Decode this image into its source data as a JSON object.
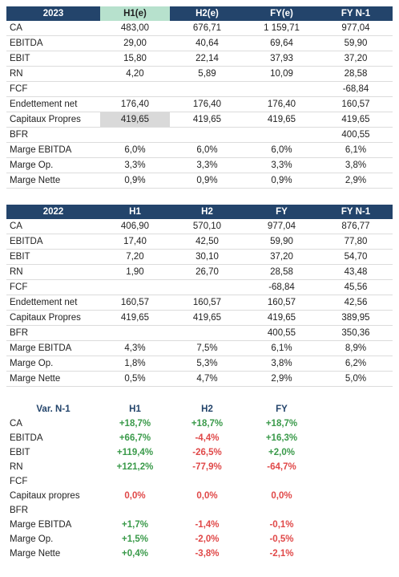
{
  "tables": [
    {
      "header": [
        "2023",
        "H1(e)",
        "H2(e)",
        "FY(e)",
        "FY N-1"
      ],
      "rows": [
        [
          "CA",
          "483,00",
          "676,71",
          "1 159,71",
          "977,04"
        ],
        [
          "EBITDA",
          "29,00",
          "40,64",
          "69,64",
          "59,90"
        ],
        [
          "EBIT",
          "15,80",
          "22,14",
          "37,93",
          "37,20"
        ],
        [
          "RN",
          "4,20",
          "5,89",
          "10,09",
          "28,58"
        ],
        [
          "FCF",
          null,
          null,
          null,
          "-68,84"
        ],
        [
          "Endettement net",
          "176,40",
          "176,40",
          "176,40",
          "160,57"
        ],
        [
          "Capitaux Propres",
          "419,65",
          "419,65",
          "419,65",
          "419,65"
        ],
        [
          "BFR",
          null,
          null,
          null,
          "400,55"
        ],
        [
          "Marge EBITDA",
          "6,0%",
          "6,0%",
          "6,0%",
          "6,1%"
        ],
        [
          "Marge Op.",
          "3,3%",
          "3,3%",
          "3,3%",
          "3,8%"
        ],
        [
          "Marge Nette",
          "0,9%",
          "0,9%",
          "0,9%",
          "2,9%"
        ]
      ]
    },
    {
      "header": [
        "2022",
        "H1",
        "H2",
        "FY",
        "FY N-1"
      ],
      "rows": [
        [
          "CA",
          "406,90",
          "570,10",
          "977,04",
          "876,77"
        ],
        [
          "EBITDA",
          "17,40",
          "42,50",
          "59,90",
          "77,80"
        ],
        [
          "EBIT",
          "7,20",
          "30,10",
          "37,20",
          "54,70"
        ],
        [
          "RN",
          "1,90",
          "26,70",
          "28,58",
          "43,48"
        ],
        [
          "FCF",
          null,
          null,
          "-68,84",
          "45,56"
        ],
        [
          "Endettement net",
          "160,57",
          "160,57",
          "160,57",
          "42,56"
        ],
        [
          "Capitaux Propres",
          "419,65",
          "419,65",
          "419,65",
          "389,95"
        ],
        [
          "BFR",
          null,
          null,
          "400,55",
          "350,36"
        ],
        [
          "Marge EBITDA",
          "4,3%",
          "7,5%",
          "6,1%",
          "8,9%"
        ],
        [
          "Marge Op.",
          "1,8%",
          "5,3%",
          "3,8%",
          "6,2%"
        ],
        [
          "Marge Nette",
          "0,5%",
          "4,7%",
          "2,9%",
          "5,0%"
        ]
      ]
    },
    {
      "header": [
        "Var. N-1",
        "H1",
        "H2",
        "FY"
      ],
      "rows": [
        [
          "CA",
          "+18,7%",
          "+18,7%",
          "+18,7%"
        ],
        [
          "EBITDA",
          "+66,7%",
          "-4,4%",
          "+16,3%"
        ],
        [
          "EBIT",
          "+119,4%",
          "-26,5%",
          "+2,0%"
        ],
        [
          "RN",
          "+121,2%",
          "-77,9%",
          "-64,7%"
        ],
        [
          "FCF",
          null,
          null,
          null
        ],
        [
          "Capitaux propres",
          "0,0%",
          "0,0%",
          "0,0%"
        ],
        [
          "BFR",
          null,
          null,
          null
        ],
        [
          "Marge EBITDA",
          "+1,7%",
          "-1,4%",
          "-0,1%"
        ],
        [
          "Marge Op.",
          "+1,5%",
          "-2,0%",
          "-0,5%"
        ],
        [
          "Marge Nette",
          "+0,4%",
          "-3,8%",
          "-2,1%"
        ]
      ]
    }
  ]
}
